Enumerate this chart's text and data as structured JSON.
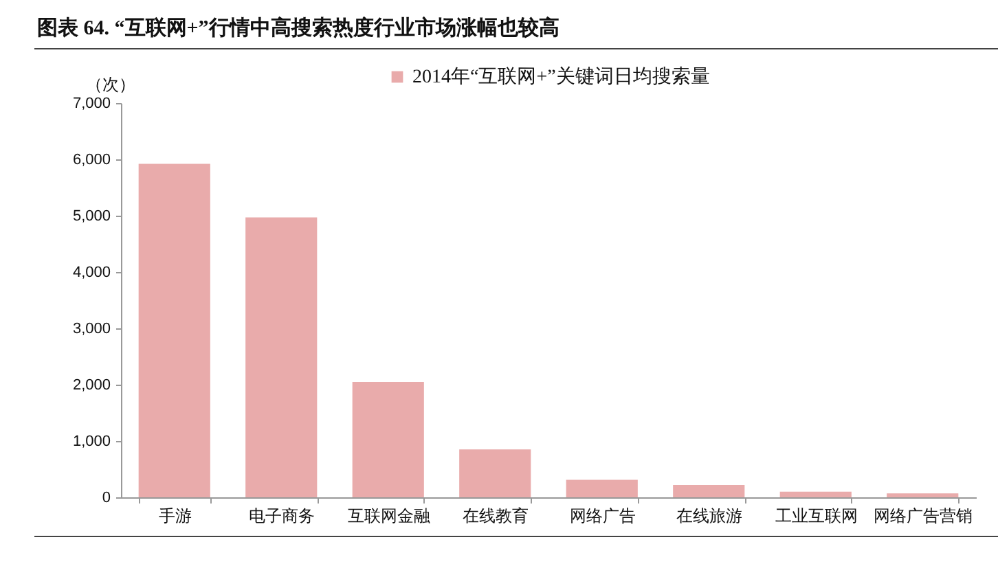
{
  "chart_data": {
    "type": "bar",
    "title": "图表 64. “互联网+”行情中高搜索热度行业市场涨幅也较高",
    "ylabel": "（次）",
    "categories": [
      "手游",
      "电子商务",
      "互联网金融",
      "在线教育",
      "网络广告",
      "在线旅游",
      "工业互联网",
      "网络广告营销"
    ],
    "series": [
      {
        "name": "2014年“互联网+”关键词日均搜索量",
        "color": "#e9abab",
        "values": [
          5920,
          4970,
          2050,
          850,
          310,
          220,
          100,
          70
        ]
      }
    ],
    "ylim": [
      0,
      7000
    ],
    "yticks": [
      0,
      {
        "value": 1000,
        "label": "1,000"
      },
      {
        "value": 2000,
        "label": "2,000"
      },
      {
        "value": 3000,
        "label": "3,000"
      },
      {
        "value": 4000,
        "label": "4,000"
      },
      {
        "value": 5000,
        "label": "5,000"
      },
      {
        "value": 6000,
        "label": "6,000"
      },
      {
        "value": 7000,
        "label": "7,000"
      }
    ],
    "legend": "top",
    "grid": false
  }
}
